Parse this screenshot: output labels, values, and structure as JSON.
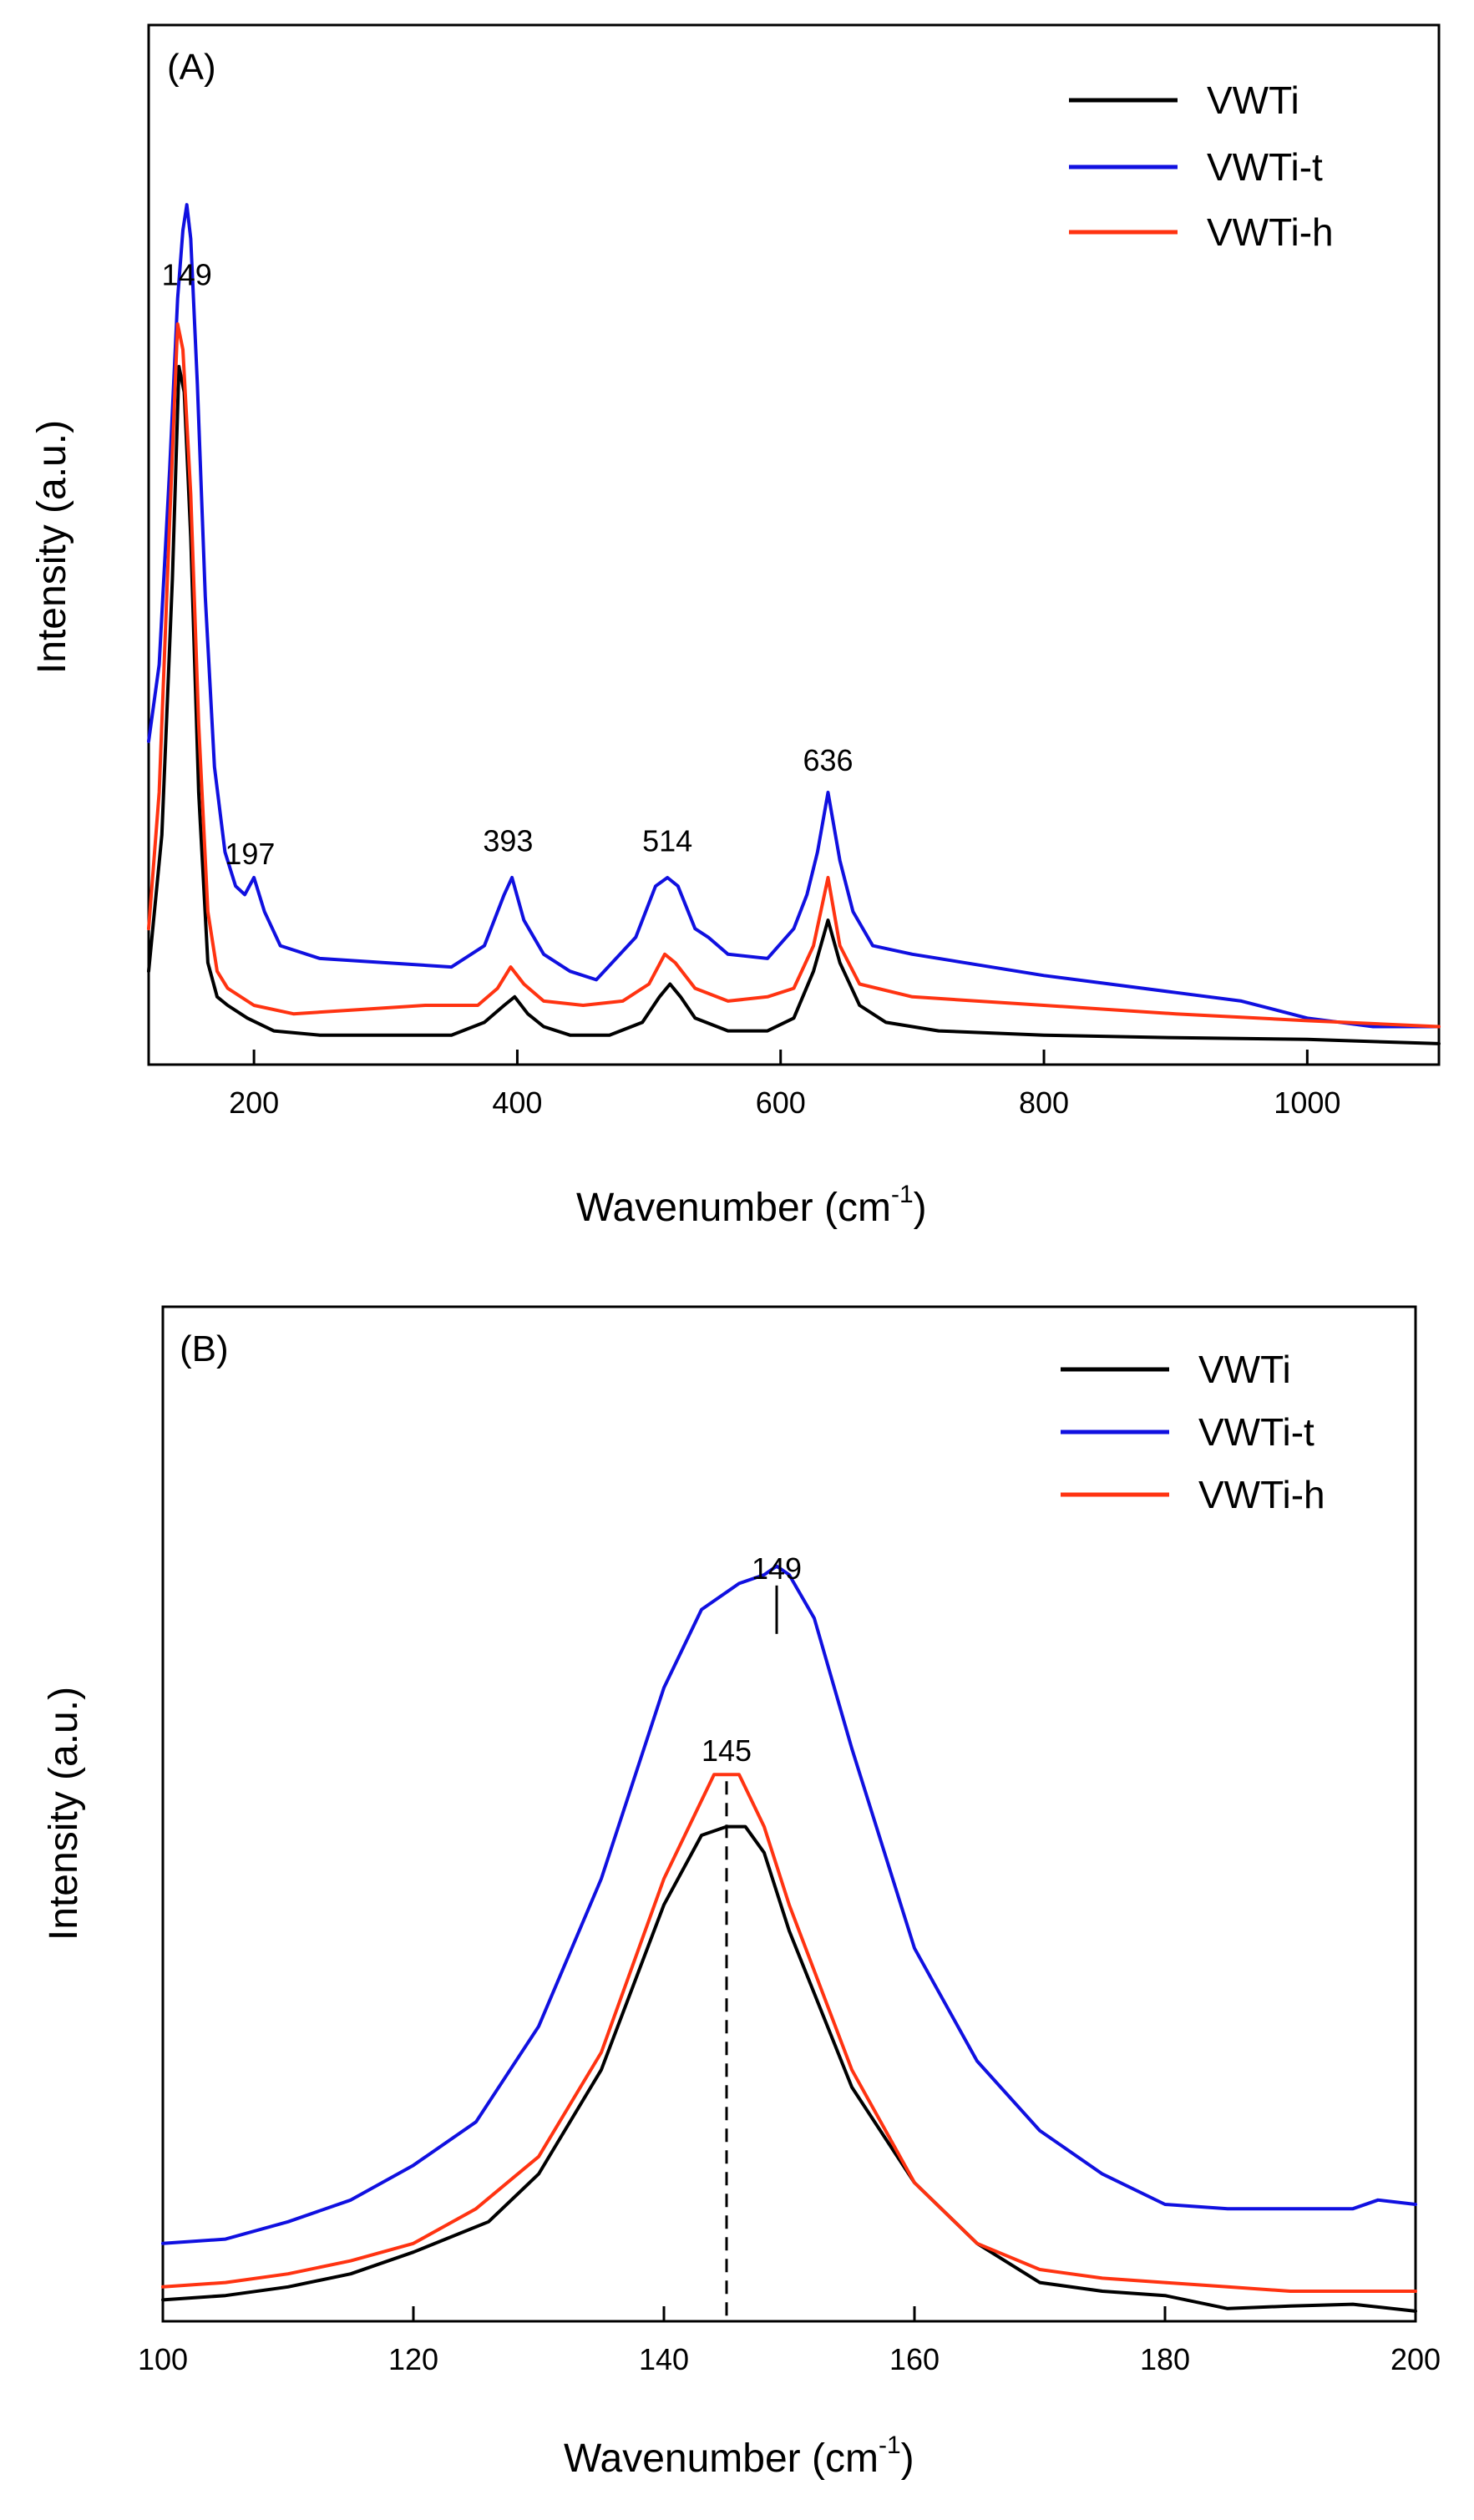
{
  "colors": {
    "VWTi": "#000000",
    "VWTi-t": "#1010e0",
    "VWTi-h": "#ff3311"
  },
  "chart_data": [
    {
      "type": "line",
      "panel": "(A)",
      "xlabel": "Wavenumber (cm",
      "xlabel_sup": "-1",
      "xlabel_end": ")",
      "ylabel": "Intensity (a.u.)",
      "xlim": [
        120,
        1100
      ],
      "ylim": [
        0,
        100
      ],
      "xticks": [
        200,
        400,
        600,
        800,
        1000
      ],
      "legend": [
        "VWTi",
        "VWTi-t",
        "VWTi-h"
      ],
      "annotations": [
        {
          "text": "149",
          "x": 149,
          "y": 88
        },
        {
          "text": "197",
          "x": 197,
          "y": 20
        },
        {
          "text": "393",
          "x": 393,
          "y": 21.5
        },
        {
          "text": "514",
          "x": 514,
          "y": 21.5
        },
        {
          "text": "636",
          "x": 636,
          "y": 31
        }
      ],
      "series": [
        {
          "name": "VWTi",
          "color": "#000000",
          "x": [
            120,
            130,
            138,
            143,
            147,
            152,
            158,
            165,
            172,
            180,
            195,
            215,
            250,
            300,
            350,
            375,
            390,
            398,
            408,
            420,
            440,
            470,
            495,
            508,
            516,
            524,
            535,
            560,
            590,
            610,
            625,
            636,
            645,
            660,
            680,
            720,
            800,
            900,
            1000,
            1100
          ],
          "y": [
            9,
            25,
            55,
            80,
            77,
            60,
            30,
            10,
            6,
            5,
            3.5,
            2,
            1.5,
            1.5,
            1.5,
            3,
            5,
            6,
            4,
            2.5,
            1.5,
            1.5,
            3,
            6,
            7.5,
            6,
            3.5,
            2,
            2,
            3.5,
            9,
            15,
            10,
            5,
            3,
            2,
            1.5,
            1.2,
            1,
            0.5
          ]
        },
        {
          "name": "VWTi-t",
          "color": "#1010e0",
          "x": [
            120,
            128,
            136,
            142,
            146,
            149,
            152,
            157,
            163,
            170,
            178,
            186,
            193,
            200,
            208,
            220,
            250,
            300,
            350,
            375,
            390,
            396,
            405,
            420,
            440,
            460,
            490,
            505,
            514,
            522,
            535,
            545,
            560,
            590,
            610,
            620,
            628,
            636,
            645,
            655,
            670,
            700,
            800,
            900,
            950,
            1000,
            1050,
            1100
          ],
          "y": [
            36,
            45,
            68,
            88,
            96,
            99,
            95,
            78,
            53,
            33,
            23,
            19,
            18,
            20,
            16,
            12,
            10.5,
            10,
            9.5,
            12,
            18,
            20,
            15,
            11,
            9,
            8,
            13,
            19,
            20,
            19,
            14,
            13,
            11,
            10.5,
            14,
            18,
            23,
            30,
            22,
            16,
            12,
            11,
            8.5,
            6.5,
            5.5,
            3.5,
            2.5,
            2.5
          ]
        },
        {
          "name": "VWTi-h",
          "color": "#ff3311",
          "x": [
            120,
            128,
            136,
            142,
            146,
            152,
            158,
            165,
            172,
            180,
            200,
            230,
            280,
            330,
            370,
            385,
            395,
            405,
            420,
            450,
            480,
            500,
            512,
            520,
            535,
            560,
            590,
            610,
            625,
            636,
            645,
            660,
            700,
            800,
            900,
            1000,
            1100
          ],
          "y": [
            14,
            30,
            62,
            85,
            82,
            65,
            38,
            16,
            9,
            7,
            5,
            4,
            4.5,
            5,
            5,
            7,
            9.5,
            7.5,
            5.5,
            5,
            5.5,
            7.5,
            11,
            10,
            7,
            5.5,
            6,
            7,
            12,
            20,
            12,
            7.5,
            6,
            5,
            4,
            3.2,
            2.5
          ]
        }
      ]
    },
    {
      "type": "line",
      "panel": "(B)",
      "xlabel": "Wavenumber (cm",
      "xlabel_sup": "-1",
      "xlabel_end": ")",
      "ylabel": "Intensity (a.u.)",
      "xlim": [
        100,
        200
      ],
      "ylim": [
        0,
        100
      ],
      "xticks": [
        100,
        120,
        140,
        160,
        180,
        200
      ],
      "legend": [
        "VWTi",
        "VWTi-t",
        "VWTi-h"
      ],
      "annotations": [
        {
          "text": "149",
          "x": 149,
          "y": 83,
          "marker": "tick"
        },
        {
          "text": "145",
          "x": 145,
          "y": 62,
          "marker": "dashed"
        }
      ],
      "series": [
        {
          "name": "VWTi",
          "color": "#000000",
          "x": [
            100,
            105,
            110,
            115,
            120,
            126,
            130,
            135,
            140,
            143,
            145,
            146.5,
            148,
            150,
            155,
            160,
            165,
            170,
            175,
            180,
            185,
            190,
            195,
            200
          ],
          "y": [
            1.5,
            2,
            3,
            4.5,
            7,
            10.5,
            16,
            28,
            47,
            55,
            56,
            56,
            53,
            44,
            26,
            15,
            8,
            3.5,
            2.5,
            2,
            0.5,
            0.8,
            1,
            0.2
          ]
        },
        {
          "name": "VWTi-t",
          "color": "#1010e0",
          "x": [
            100,
            105,
            110,
            115,
            120,
            125,
            130,
            135,
            140,
            143,
            146,
            148,
            149,
            150,
            152,
            155,
            160,
            165,
            170,
            175,
            180,
            185,
            190,
            195,
            197,
            200
          ],
          "y": [
            8,
            8.5,
            10.5,
            13,
            17,
            22,
            33,
            50,
            72,
            81,
            84,
            85,
            86,
            85,
            80,
            65,
            42,
            29,
            21,
            16,
            12.5,
            12,
            12,
            12,
            13,
            12.5
          ]
        },
        {
          "name": "VWTi-h",
          "color": "#ff3311",
          "x": [
            100,
            105,
            110,
            115,
            120,
            125,
            130,
            135,
            140,
            144,
            146,
            148,
            150,
            155,
            160,
            165,
            170,
            175,
            180,
            185,
            190,
            195,
            200
          ],
          "y": [
            3,
            3.5,
            4.5,
            6,
            8,
            12,
            18,
            30,
            50,
            62,
            62,
            56,
            47,
            28,
            15,
            8,
            5,
            4,
            3.5,
            3,
            2.5,
            2.5,
            2.5
          ]
        }
      ]
    }
  ]
}
